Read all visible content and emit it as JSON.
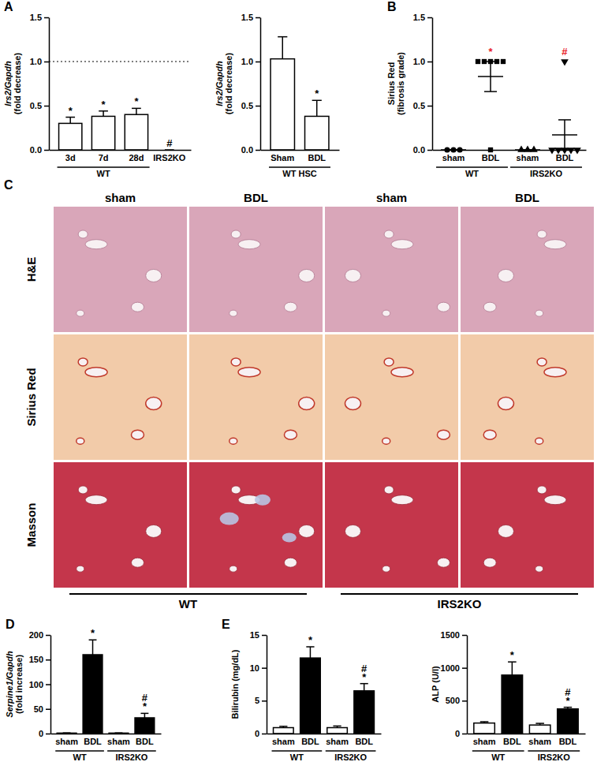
{
  "chart_data": [
    {
      "type": "bar",
      "panel": "A",
      "y_label": [
        "Irs2/Gapdh",
        "(fold decrease)"
      ],
      "categories": [
        "3d",
        "7d",
        "28d",
        "IRS2KO"
      ],
      "groups": [
        "WT",
        "WT",
        "WT",
        null
      ],
      "values": [
        0.3,
        0.38,
        0.4,
        0
      ],
      "errors": [
        0.07,
        0.06,
        0.07,
        0
      ],
      "annotations": [
        "*",
        "*",
        "*",
        "#"
      ],
      "reference_line": 1,
      "color": "#ffffff",
      "ylim": [
        0,
        1.5
      ],
      "yticks": [
        {
          "value": 0,
          "label": "0.0"
        },
        {
          "value": 0.5,
          "label": "0.5"
        },
        {
          "value": 1,
          "label": "1.0"
        },
        {
          "value": 1.5,
          "label": "1.5"
        }
      ]
    },
    {
      "type": "bar",
      "y_label": [
        "Irs2/Gapdh",
        "(fold decrease)"
      ],
      "categories": [
        "Sham",
        "BDL"
      ],
      "groups": [
        "WT HSC",
        "WT HSC"
      ],
      "values": [
        1.03,
        0.38
      ],
      "errors": [
        0.25,
        0.18
      ],
      "annotations": [
        null,
        "*"
      ],
      "color": "#ffffff",
      "ylim": [
        0,
        1.5
      ],
      "yticks": [
        {
          "value": 0,
          "label": "0.0"
        },
        {
          "value": 0.5,
          "label": "0.5"
        },
        {
          "value": 1,
          "label": "1.0"
        },
        {
          "value": 1.5,
          "label": "1.5"
        }
      ]
    },
    {
      "type": "dot",
      "panel": "B",
      "y_label": [
        "Sirius Red",
        "(fibrosis grade)"
      ],
      "categories": [
        "sham",
        "BDL",
        "sham",
        "BDL"
      ],
      "groups": [
        "WT",
        "WT",
        "IRS2KO",
        "IRS2KO"
      ],
      "points": [
        [
          0,
          0,
          0
        ],
        [
          1,
          1,
          1,
          1,
          1,
          0
        ],
        [
          0,
          0,
          0
        ],
        [
          1,
          0,
          0,
          0,
          0,
          0
        ]
      ],
      "means": [
        0,
        0.83,
        0,
        0.17
      ],
      "errors": [
        0,
        0.17,
        0,
        0.17
      ],
      "markers": [
        "circle",
        "square",
        "triangle",
        "triangle-down"
      ],
      "annotations": [
        null,
        {
          "text": "*",
          "color": "#e8191f"
        },
        null,
        {
          "text": "#",
          "color": "#e8191f"
        }
      ],
      "color": "#000000",
      "ylim": [
        0,
        1.5
      ],
      "yticks": [
        {
          "value": 0,
          "label": "0.0"
        },
        {
          "value": 0.5,
          "label": "0.5"
        },
        {
          "value": 1,
          "label": "1.0"
        },
        {
          "value": 1.5,
          "label": "1.5"
        }
      ]
    },
    {
      "type": "bar",
      "panel": "D",
      "y_label": [
        "Serpine1/Gapdh",
        "(fold increase)"
      ],
      "categories": [
        "sham",
        "BDL",
        "sham",
        "BDL"
      ],
      "groups": [
        "WT",
        "WT",
        "IRS2KO",
        "IRS2KO"
      ],
      "values": [
        1,
        160,
        1,
        32
      ],
      "errors": [
        0.3,
        30,
        0.3,
        9
      ],
      "annotations": [
        null,
        [
          "*"
        ],
        null,
        [
          "#",
          "*"
        ]
      ],
      "colors": [
        "#ffffff",
        "#000000",
        "#ffffff",
        "#000000"
      ],
      "ylim": [
        0,
        200
      ],
      "yticks": [
        0,
        50,
        100,
        150,
        200
      ]
    },
    {
      "type": "bar",
      "panel": "E",
      "y_label": [
        "Bilirubin (mg/dL)"
      ],
      "categories": [
        "sham",
        "BDL",
        "sham",
        "BDL"
      ],
      "groups": [
        "WT",
        "WT",
        "IRS2KO",
        "IRS2KO"
      ],
      "values": [
        0.9,
        11.5,
        0.9,
        6.5
      ],
      "errors": [
        0.2,
        1.7,
        0.25,
        1.1
      ],
      "annotations": [
        null,
        [
          "*"
        ],
        null,
        [
          "#",
          "*"
        ]
      ],
      "colors": [
        "#ffffff",
        "#000000",
        "#ffffff",
        "#000000"
      ],
      "ylim": [
        0,
        15
      ],
      "yticks": [
        0,
        5,
        10,
        15
      ]
    },
    {
      "type": "bar",
      "y_label": [
        "ALP (U/l)"
      ],
      "categories": [
        "sham",
        "BDL",
        "sham",
        "BDL"
      ],
      "groups": [
        "WT",
        "WT",
        "IRS2KO",
        "IRS2KO"
      ],
      "values": [
        160,
        890,
        130,
        375
      ],
      "errors": [
        20,
        200,
        25,
        25
      ],
      "annotations": [
        null,
        [
          "*"
        ],
        null,
        [
          "#",
          "*"
        ]
      ],
      "colors": [
        "#ffffff",
        "#000000",
        "#ffffff",
        "#000000"
      ],
      "ylim": [
        0,
        1500
      ],
      "yticks": [
        0,
        500,
        1000,
        1500
      ]
    }
  ],
  "panel_c": {
    "label": "C",
    "columns": [
      "sham",
      "BDL",
      "sham",
      "BDL"
    ],
    "rows": [
      "H&E",
      "Sirius Red",
      "Masson"
    ],
    "groups": [
      "WT",
      "WT",
      "IRS2KO",
      "IRS2KO"
    ]
  }
}
